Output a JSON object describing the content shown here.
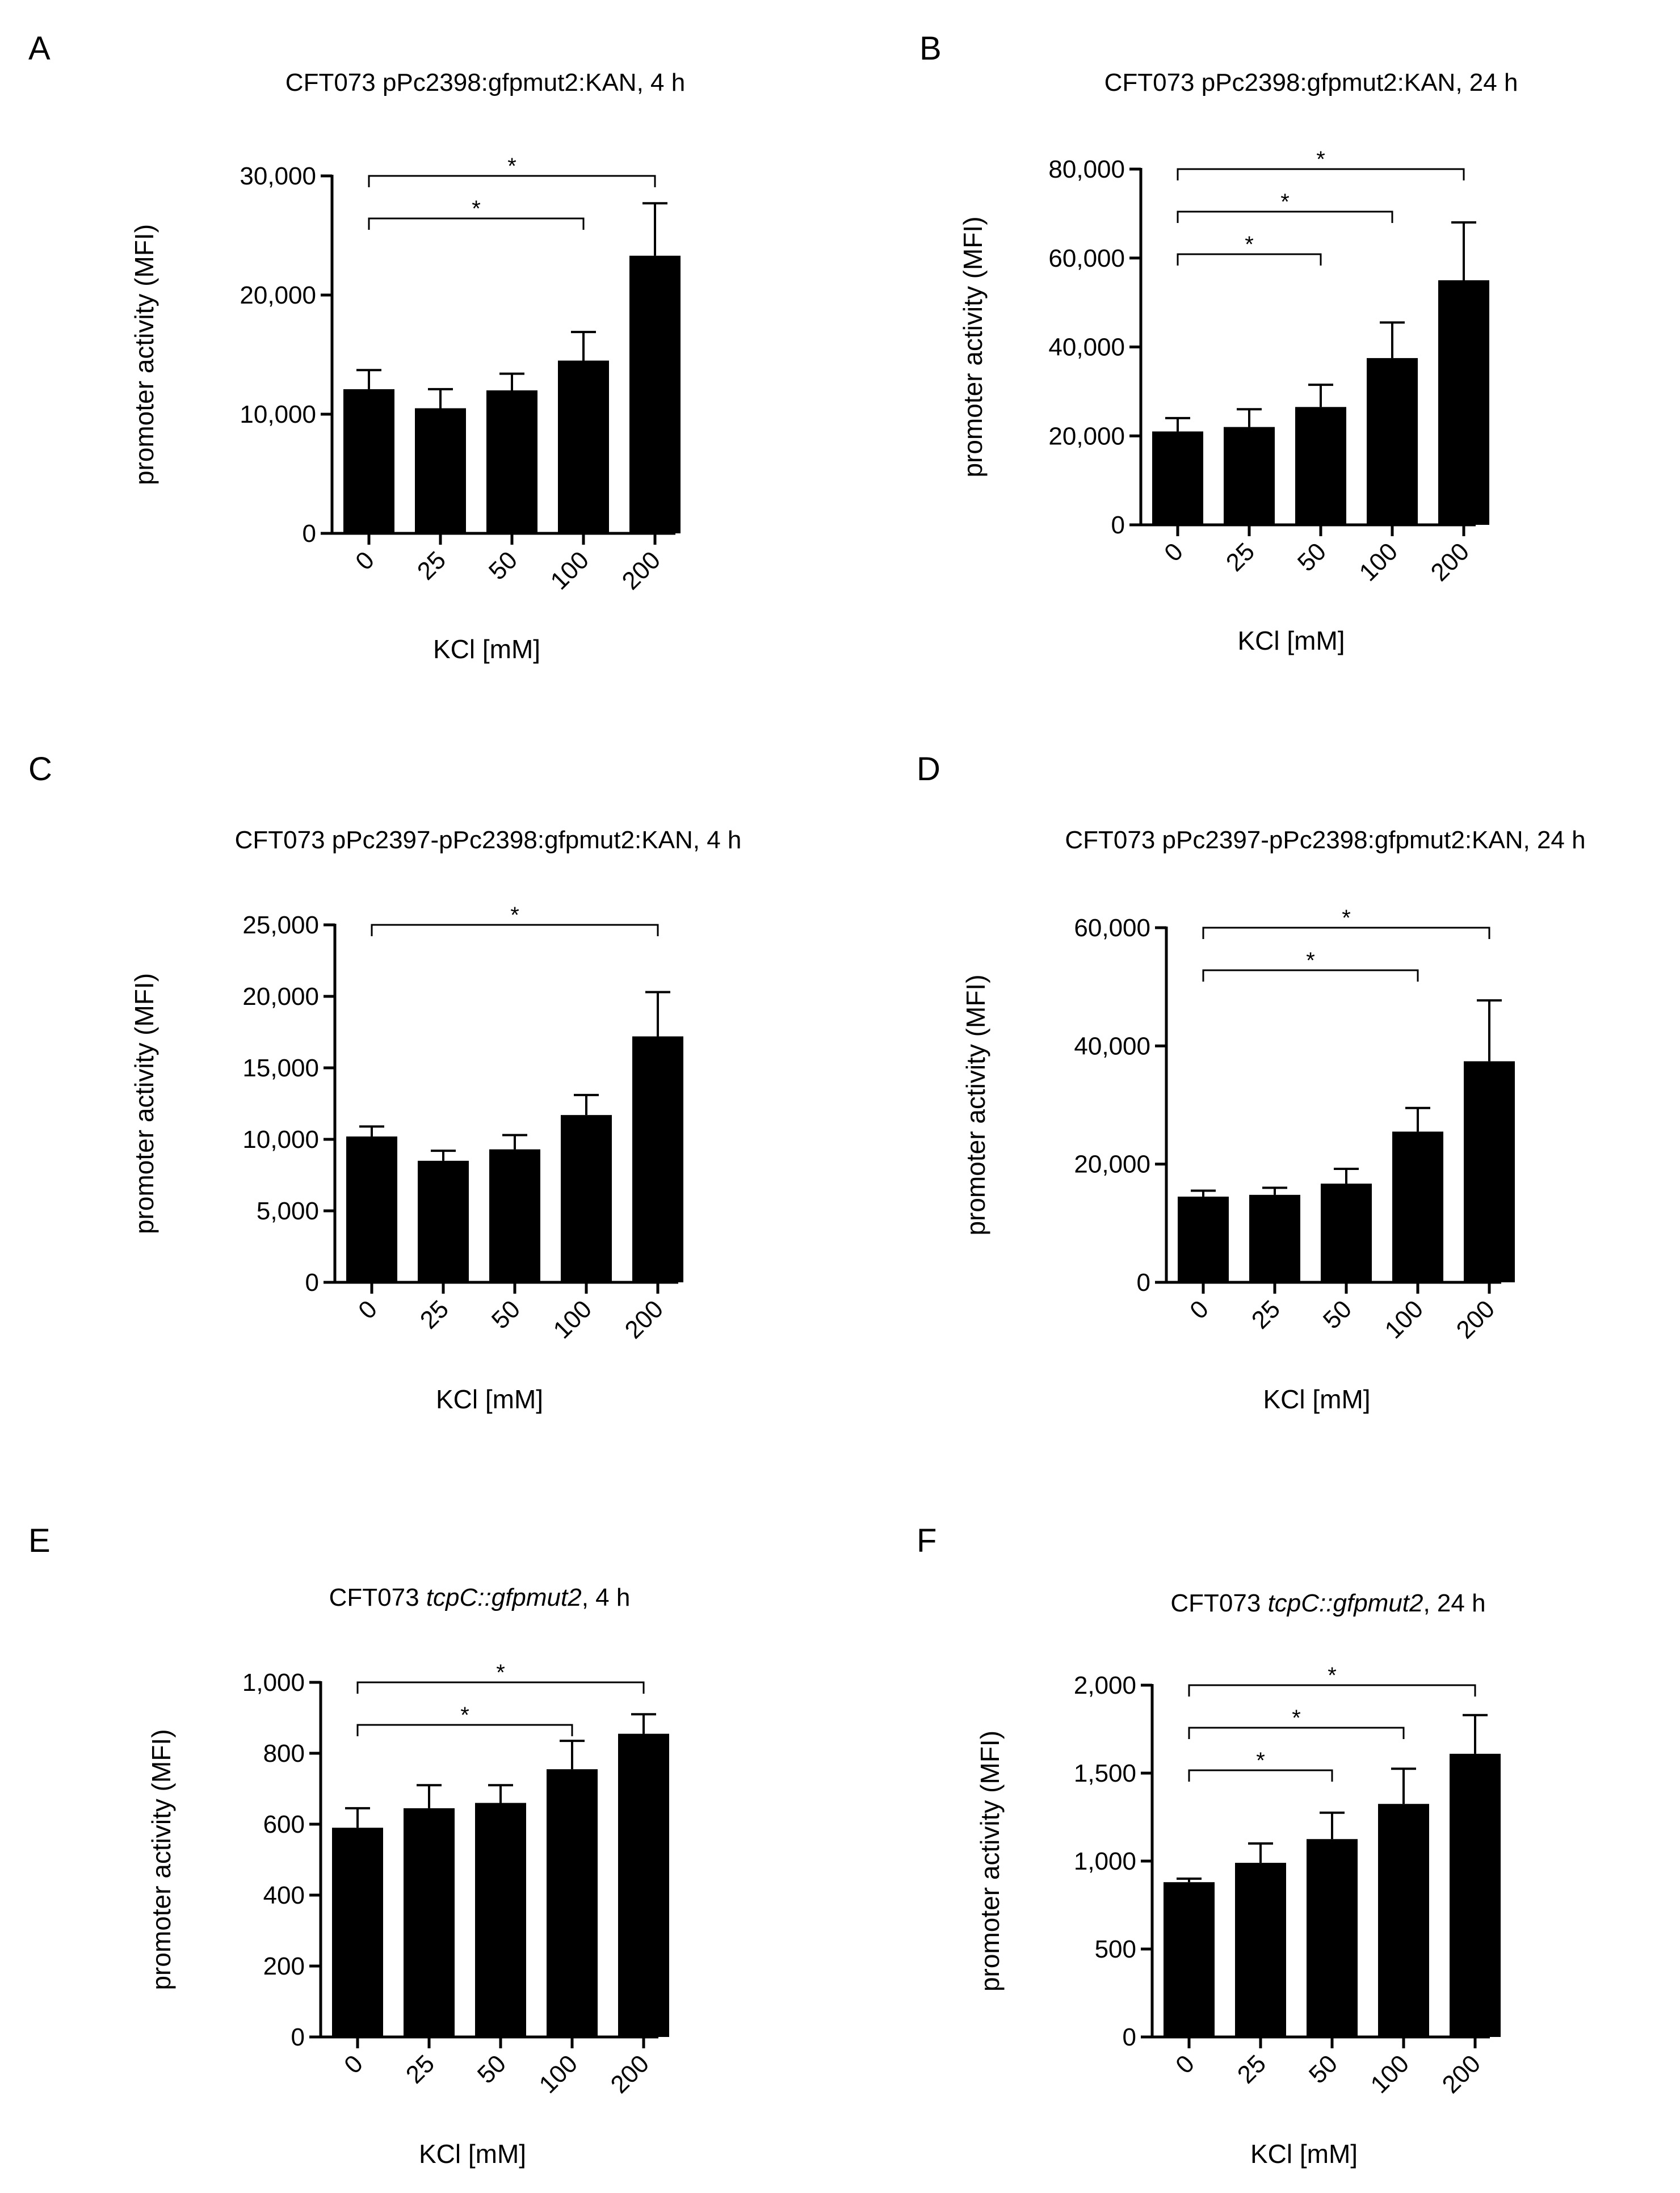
{
  "chart_data": [
    {
      "panel": "A",
      "type": "bar",
      "title": "CFT073 pPc2398:gfpmut2:KAN, 4 h",
      "title_italic": "",
      "title_suffix": "",
      "xlabel": "KCl [mM]",
      "ylabel": "promoter activity (MFI)",
      "categories": [
        "0",
        "25",
        "50",
        "100",
        "200"
      ],
      "values": [
        12100,
        10500,
        12000,
        14500,
        23300
      ],
      "errors": [
        1600,
        1600,
        1400,
        2400,
        4400
      ],
      "ylim": [
        0,
        30000
      ],
      "yticks": [
        0,
        10000,
        20000,
        30000
      ],
      "ytick_labels": [
        "0",
        "10,000",
        "20,000",
        "30,000"
      ],
      "significance": [
        {
          "from": 0,
          "to": 4,
          "label": "*"
        },
        {
          "from": 0,
          "to": 3,
          "label": "*"
        }
      ],
      "color": "#000000"
    },
    {
      "panel": "B",
      "type": "bar",
      "title": "CFT073 pPc2398:gfpmut2:KAN, 24 h",
      "title_italic": "",
      "title_suffix": "",
      "xlabel": "KCl [mM]",
      "ylabel": "promoter activity (MFI)",
      "categories": [
        "0",
        "25",
        "50",
        "100",
        "200"
      ],
      "values": [
        21000,
        22000,
        26500,
        37500,
        55000
      ],
      "errors": [
        3000,
        4000,
        5000,
        8000,
        13000
      ],
      "ylim": [
        0,
        80000
      ],
      "yticks": [
        0,
        20000,
        40000,
        60000,
        80000
      ],
      "ytick_labels": [
        "0",
        "20,000",
        "40,000",
        "60,000",
        "80,000"
      ],
      "significance": [
        {
          "from": 0,
          "to": 4,
          "label": "*"
        },
        {
          "from": 0,
          "to": 3,
          "label": "*"
        },
        {
          "from": 0,
          "to": 2,
          "label": "*"
        }
      ],
      "color": "#000000"
    },
    {
      "panel": "C",
      "type": "bar",
      "title": "CFT073 pPc2397-pPc2398:gfpmut2:KAN, 4 h",
      "title_italic": "",
      "title_suffix": "",
      "xlabel": "KCl [mM]",
      "ylabel": "promoter activity (MFI)",
      "categories": [
        "0",
        "25",
        "50",
        "100",
        "200"
      ],
      "values": [
        10200,
        8500,
        9300,
        11700,
        17200
      ],
      "errors": [
        700,
        700,
        1000,
        1400,
        3100
      ],
      "ylim": [
        0,
        25000
      ],
      "yticks": [
        0,
        5000,
        10000,
        15000,
        20000,
        25000
      ],
      "ytick_labels": [
        "0",
        "5,000",
        "10,000",
        "15,000",
        "20,000",
        "25,000"
      ],
      "significance": [
        {
          "from": 0,
          "to": 4,
          "label": "*"
        }
      ],
      "color": "#000000"
    },
    {
      "panel": "D",
      "type": "bar",
      "title": "CFT073 pPc2397-pPc2398:gfpmut2:KAN, 24 h",
      "title_italic": "",
      "title_suffix": "",
      "xlabel": "KCl [mM]",
      "ylabel": "promoter activity (MFI)",
      "categories": [
        "0",
        "25",
        "50",
        "100",
        "200"
      ],
      "values": [
        14500,
        14800,
        16700,
        25500,
        37400
      ],
      "errors": [
        1000,
        1200,
        2500,
        4000,
        10300
      ],
      "ylim": [
        0,
        60000
      ],
      "yticks": [
        0,
        20000,
        40000,
        60000
      ],
      "ytick_labels": [
        "0",
        "20,000",
        "40,000",
        "60,000"
      ],
      "significance": [
        {
          "from": 0,
          "to": 4,
          "label": "*"
        },
        {
          "from": 0,
          "to": 3,
          "label": "*"
        }
      ],
      "color": "#000000"
    },
    {
      "panel": "E",
      "type": "bar",
      "title": "CFT073 ",
      "title_italic": "tcpC::gfpmut2",
      "title_suffix": ", 4 h",
      "xlabel": "KCl [mM]",
      "ylabel": "promoter activity (MFI)",
      "categories": [
        "0",
        "25",
        "50",
        "100",
        "200"
      ],
      "values": [
        590,
        645,
        660,
        755,
        855
      ],
      "errors": [
        55,
        65,
        50,
        80,
        55
      ],
      "ylim": [
        0,
        1000
      ],
      "yticks": [
        0,
        200,
        400,
        600,
        800,
        1000
      ],
      "ytick_labels": [
        "0",
        "200",
        "400",
        "600",
        "800",
        "1,000"
      ],
      "significance": [
        {
          "from": 0,
          "to": 4,
          "label": "*"
        },
        {
          "from": 0,
          "to": 3,
          "label": "*"
        }
      ],
      "color": "#000000"
    },
    {
      "panel": "F",
      "type": "bar",
      "title": "CFT073 ",
      "title_italic": "tcpC::gfpmut2",
      "title_suffix": ", 24 h",
      "xlabel": "KCl [mM]",
      "ylabel": "promoter activity (MFI)",
      "categories": [
        "0",
        "25",
        "50",
        "100",
        "200"
      ],
      "values": [
        880,
        990,
        1125,
        1325,
        1610
      ],
      "errors": [
        20,
        110,
        150,
        200,
        220
      ],
      "ylim": [
        0,
        2000
      ],
      "yticks": [
        0,
        500,
        1000,
        1500,
        2000
      ],
      "ytick_labels": [
        "0",
        "500",
        "1,000",
        "1,500",
        "2,000"
      ],
      "significance": [
        {
          "from": 0,
          "to": 4,
          "label": "*"
        },
        {
          "from": 0,
          "to": 3,
          "label": "*"
        },
        {
          "from": 0,
          "to": 2,
          "label": "*"
        }
      ],
      "color": "#000000"
    }
  ]
}
